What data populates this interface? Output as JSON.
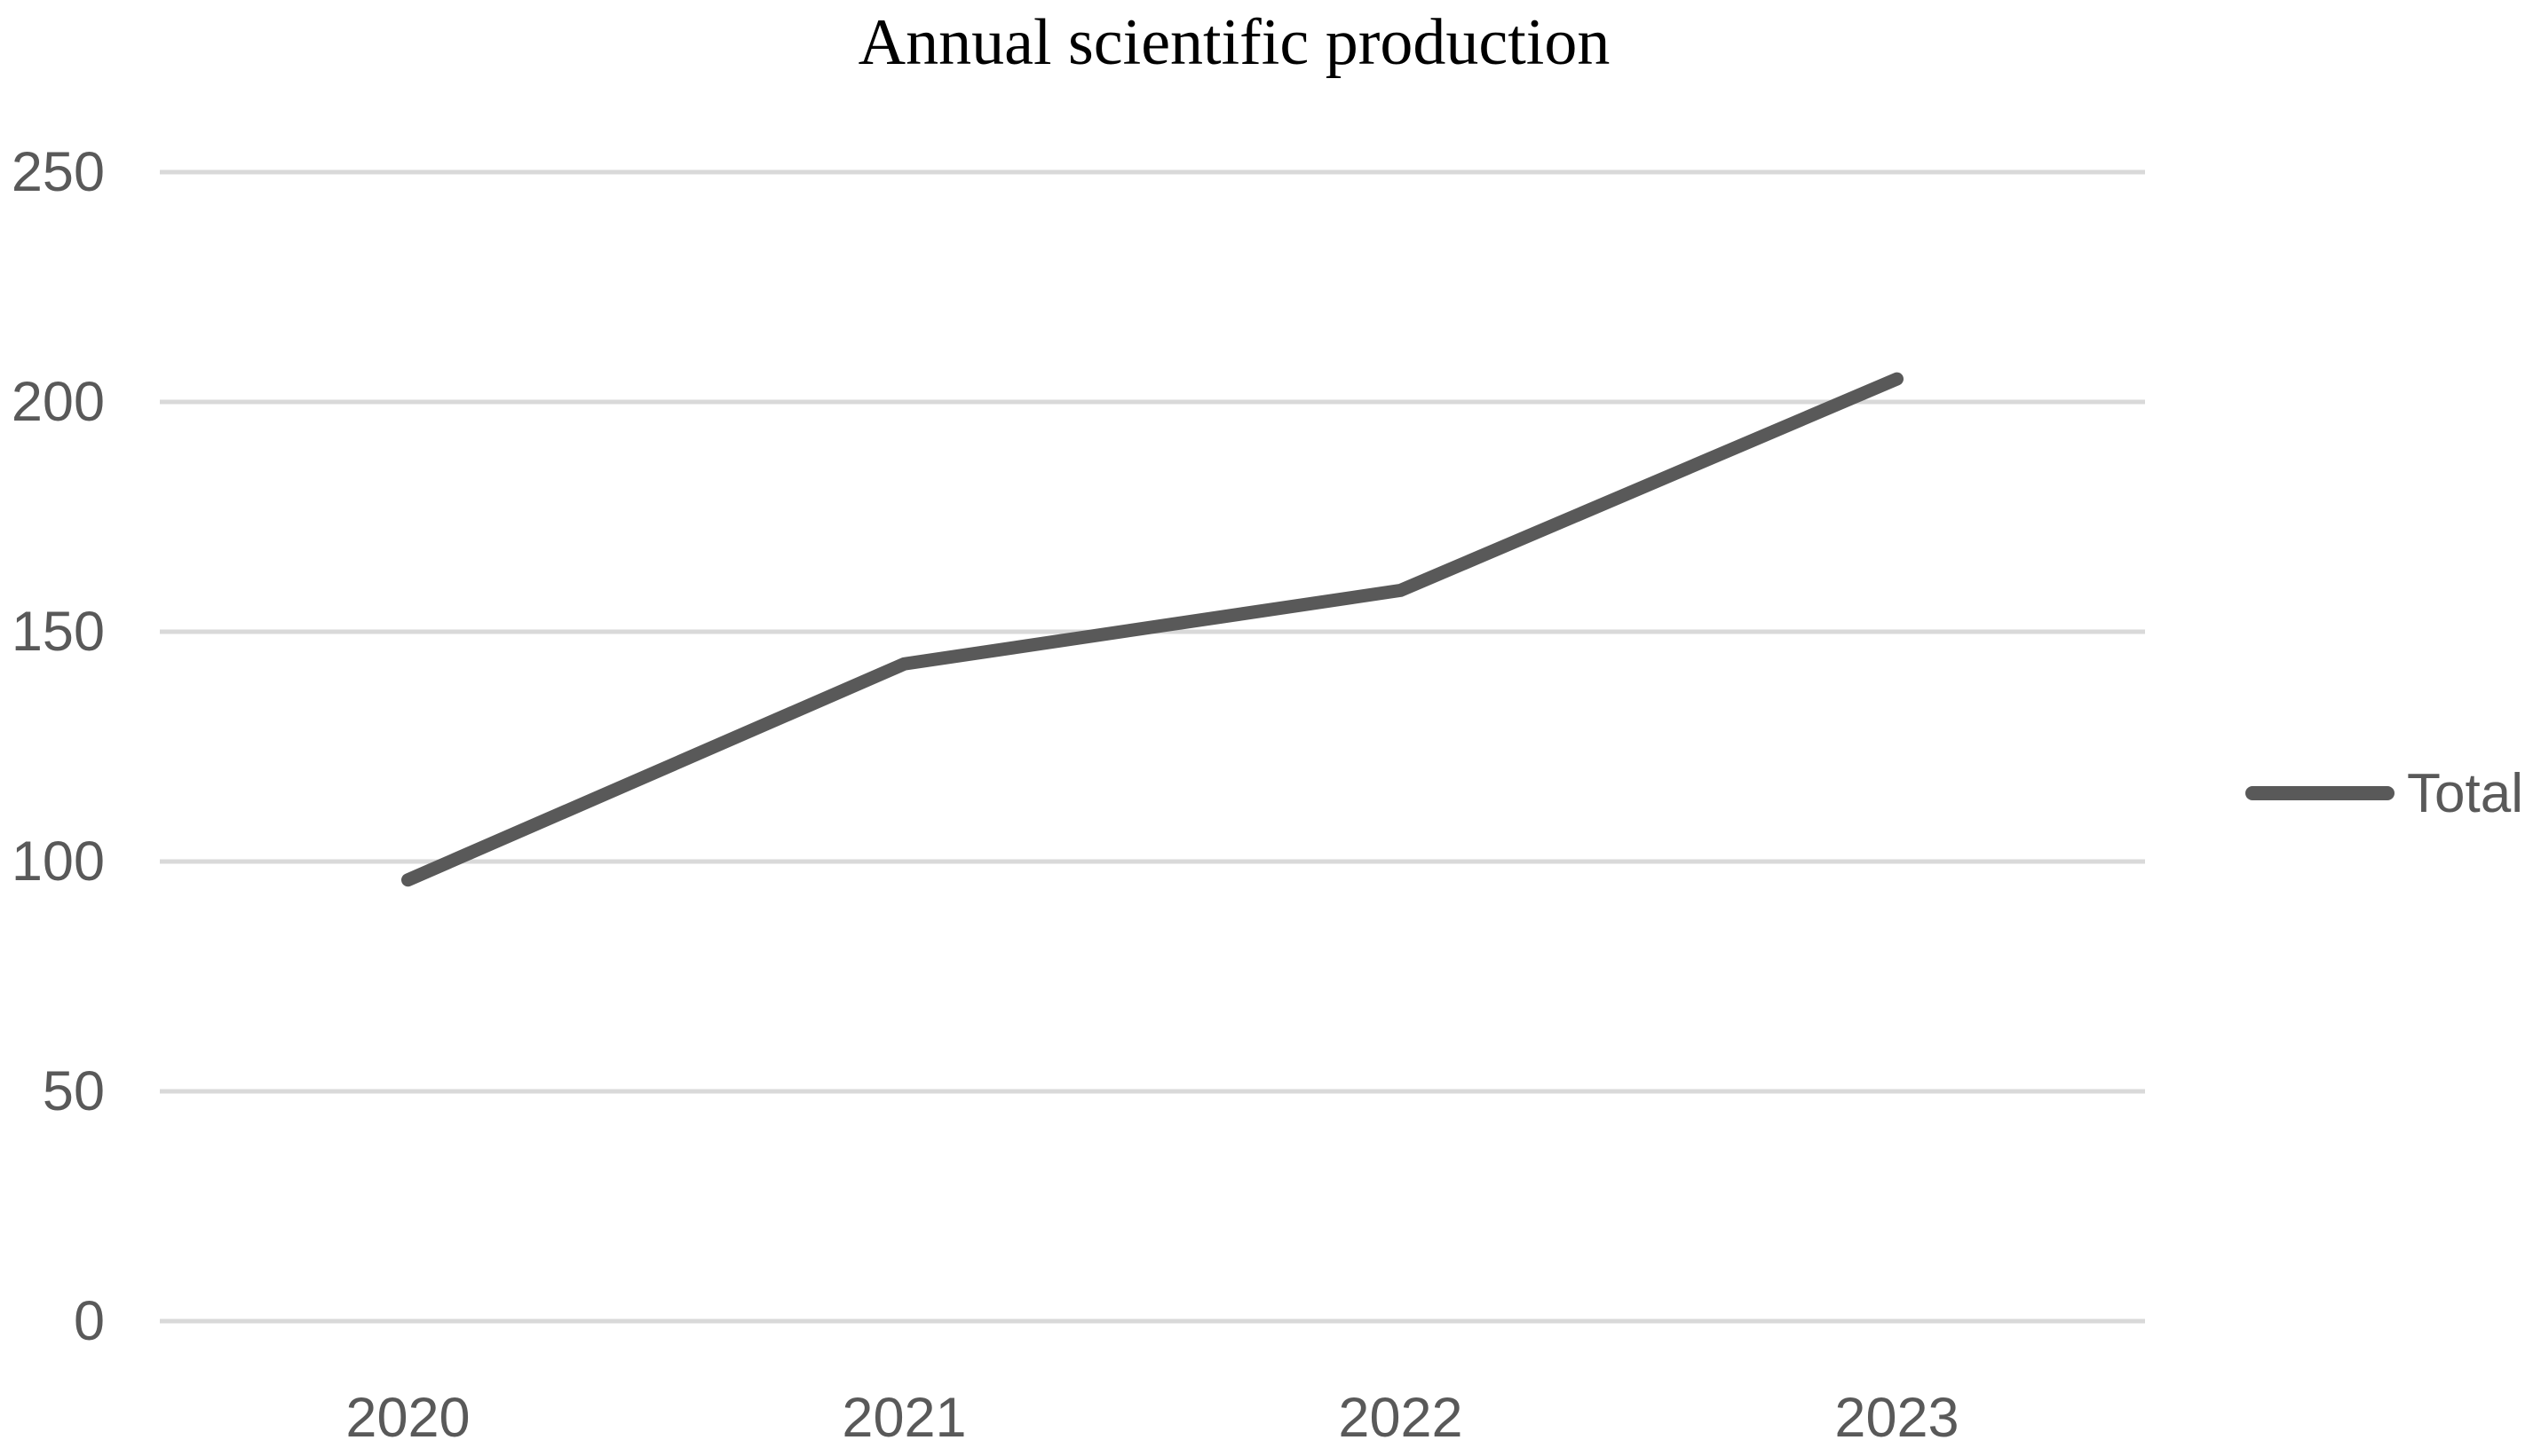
{
  "title": "Annual scientific production",
  "legend": {
    "label": "Total"
  },
  "colors": {
    "line": "#595959",
    "grid": "#D9D9D9",
    "tick_label": "#595959",
    "title": "#000000"
  },
  "y_axis": {
    "tick_labels": [
      "0",
      "50",
      "100",
      "150",
      "200",
      "250"
    ]
  },
  "x_axis": {
    "tick_labels": [
      "2020",
      "2021",
      "2022",
      "2023"
    ]
  },
  "chart_data": {
    "type": "line",
    "title": "Annual scientific production",
    "categories": [
      "2020",
      "2021",
      "2022",
      "2023"
    ],
    "series": [
      {
        "name": "Total",
        "values": [
          96,
          143,
          159,
          205
        ]
      }
    ],
    "xlabel": "",
    "ylabel": "",
    "ylim": [
      0,
      250
    ],
    "yticks": [
      0,
      50,
      100,
      150,
      200,
      250
    ],
    "grid": "horizontal-only",
    "legend_position": "right",
    "line_style": "thick solid, round caps and joins, no markers"
  }
}
